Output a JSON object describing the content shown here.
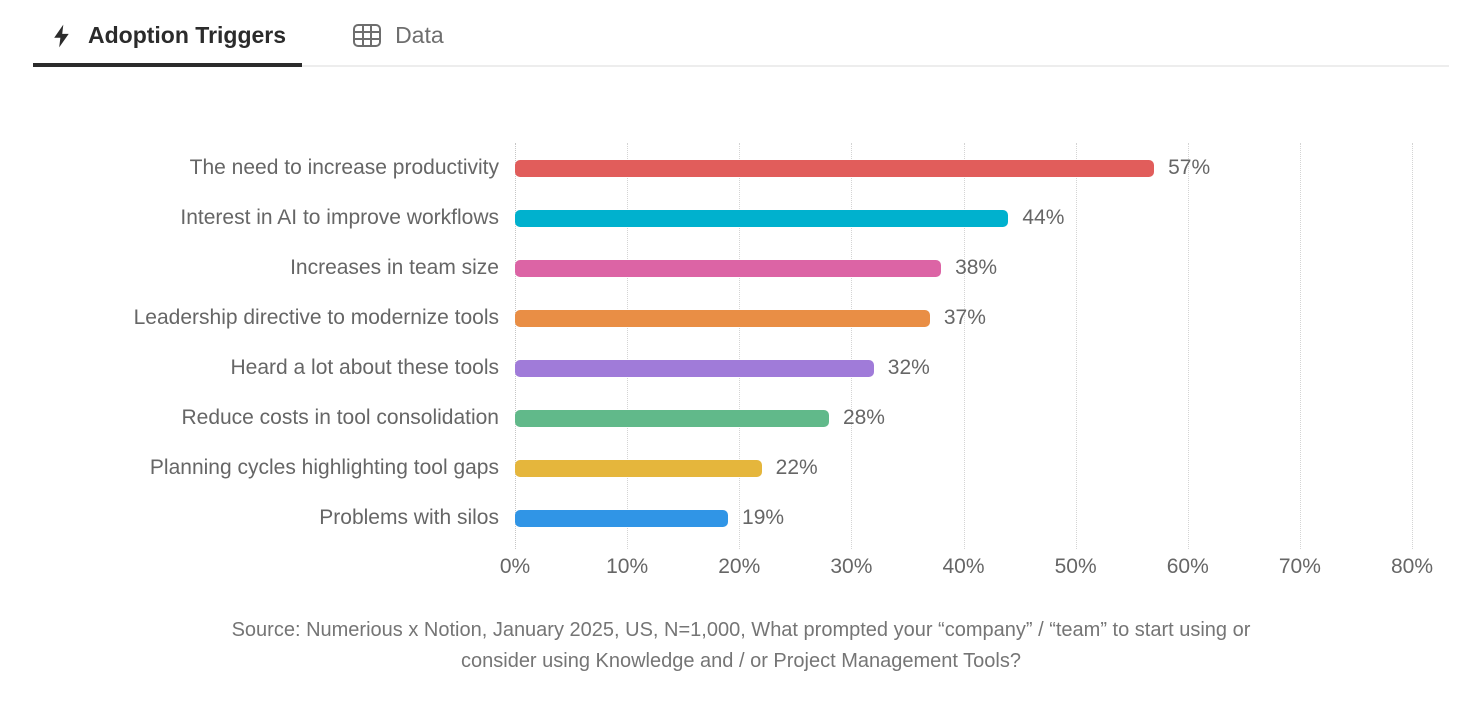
{
  "tabs": [
    {
      "label": "Adoption Triggers",
      "icon": "lightning-bolt-icon",
      "active": true
    },
    {
      "label": "Data",
      "icon": "data-table-icon",
      "active": false
    }
  ],
  "chart_data": {
    "type": "bar",
    "orientation": "horizontal",
    "title": "Adoption Triggers",
    "categories": [
      "The need to increase productivity",
      "Interest in AI to improve workflows",
      "Increases in team size",
      "Leadership directive to modernize tools",
      "Heard a lot about these tools",
      "Reduce costs in tool consolidation",
      "Planning cycles highlighting tool gaps",
      "Problems with silos"
    ],
    "values": [
      57,
      44,
      38,
      37,
      32,
      28,
      22,
      19
    ],
    "value_labels": [
      "57%",
      "44%",
      "38%",
      "37%",
      "32%",
      "28%",
      "22%",
      "19%"
    ],
    "bar_colors": [
      "#E15D5B",
      "#00B1CE",
      "#DC64A5",
      "#E98E45",
      "#A07BD9",
      "#61B98A",
      "#E5B63C",
      "#3095E6"
    ],
    "xlabel": "",
    "ylabel": "",
    "xlim": [
      0,
      80
    ],
    "x_ticks": [
      "0%",
      "10%",
      "20%",
      "30%",
      "40%",
      "50%",
      "60%",
      "70%",
      "80%"
    ],
    "grid": "vertical-dotted",
    "legend": "none"
  },
  "source": {
    "lines": [
      "Source: Numerious x Notion, January 2025, US, N=1,000, What prompted your “company” / “team” to start using or",
      "consider using Knowledge and / or Project Management Tools?"
    ]
  },
  "colors": {
    "active_tab_text": "#2b2b2b",
    "inactive_tab_text": "#6e6e6e",
    "tab_underline": "#2b2b2b",
    "header_border": "#ededed",
    "axis_text": "#666666",
    "caption_text": "#757575",
    "gridline": "#d4d4d4",
    "background": "#ffffff"
  }
}
